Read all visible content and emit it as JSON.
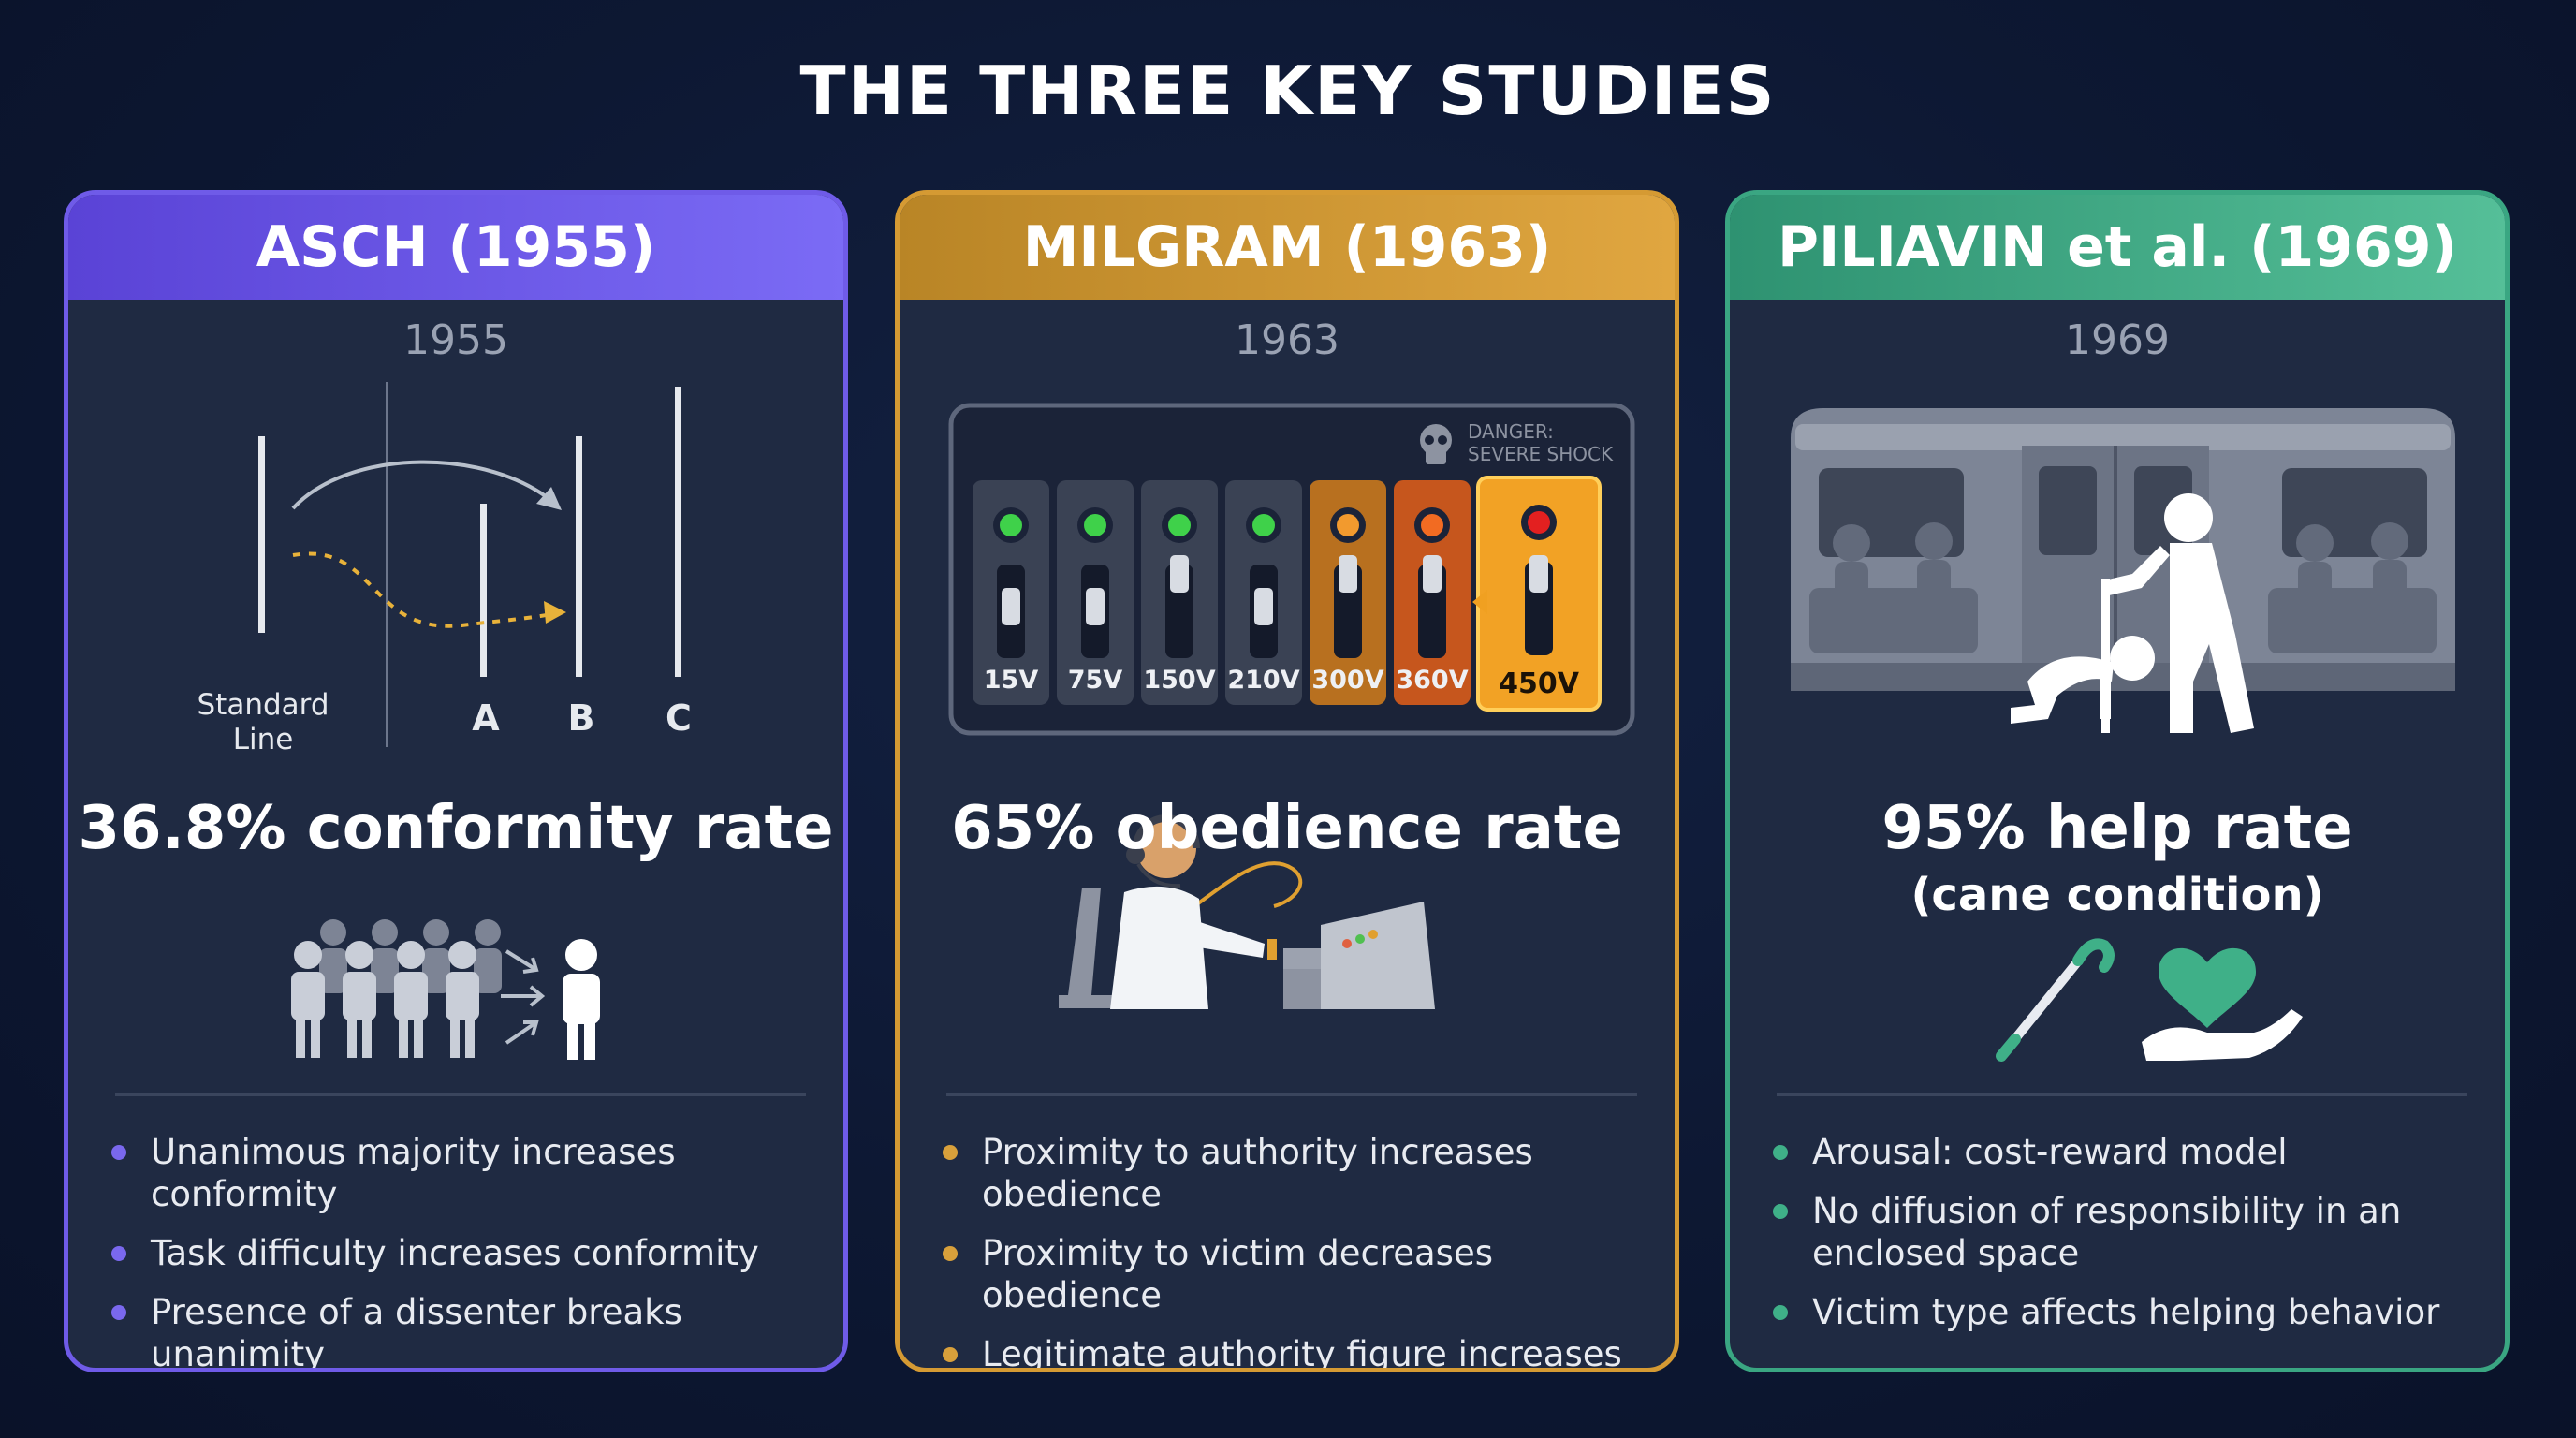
{
  "title": "THE THREE KEY STUDIES",
  "cards": [
    {
      "header": "ASCH (1955)",
      "year": "1955",
      "line_labels": {
        "standard": [
          "Standard",
          "Line"
        ],
        "a": "A",
        "b": "B",
        "c": "C"
      },
      "stat": "36.8% conformity rate",
      "bullets": [
        "Unanimous majority increases conformity",
        "Task difficulty increases conformity",
        "Presence of a dissenter breaks unanimity"
      ],
      "accent": "#6f5be8"
    },
    {
      "header": "MILGRAM (1963)",
      "year": "1963",
      "danger_label": [
        "DANGER:",
        "SEVERE SHOCK"
      ],
      "voltages": [
        "15V",
        "75V",
        "150V",
        "210V",
        "300V",
        "360V",
        "450V"
      ],
      "stat": "65% obedience rate",
      "bullets": [
        "Proximity to authority increases obedience",
        "Proximity to victim decreases obedience",
        "Legitimate authority figure increases obedience"
      ],
      "accent": "#d59a33"
    },
    {
      "header": "PILIAVIN et al. (1969)",
      "year": "1969",
      "stat": "95% help rate",
      "stat_sub": "(cane condition)",
      "bullets": [
        "Arousal: cost-reward model",
        "No diffusion of responsibility in an enclosed space",
        "Victim type affects helping behavior"
      ],
      "accent": "#3aa682"
    }
  ],
  "icons": {
    "asch": [
      "line-comparison-icon",
      "group-pressure-icon"
    ],
    "milgram": [
      "skull-icon",
      "shock-generator-icon",
      "teacher-at-console-icon"
    ],
    "piliavin": [
      "subway-carriage-icon",
      "cane-icon",
      "heart-in-hand-icon"
    ]
  }
}
